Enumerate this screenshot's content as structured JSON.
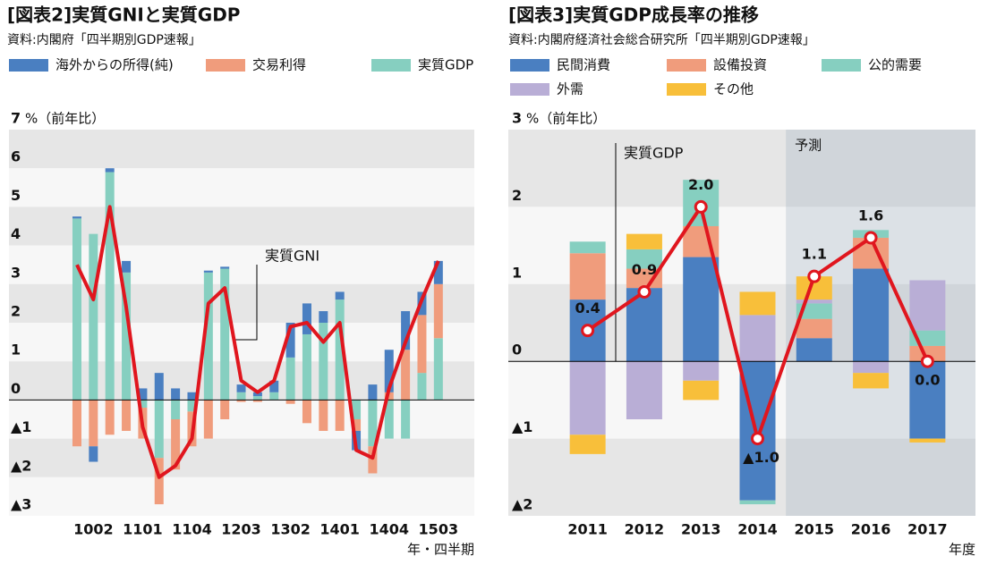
{
  "chart_data": [
    {
      "type": "bar",
      "stacked": true,
      "stack_reverse": true,
      "title": "[図表2]実質GNIと実質GDP",
      "source": "資料:内閣府「四半期別GDP速報」",
      "x_label": "年・四半期",
      "y_unit": "%（前年比）",
      "categories": [
        null,
        "1002",
        null,
        null,
        "1101",
        null,
        null,
        "1104",
        null,
        null,
        "1203",
        null,
        null,
        "1302",
        null,
        null,
        "1401",
        null,
        null,
        "1404",
        null,
        null,
        "1503"
      ],
      "series": [
        {
          "name": "海外からの所得(純)",
          "color": "#4a7fc1",
          "values": [
            0.05,
            -0.4,
            0.1,
            0.3,
            0.3,
            0.7,
            0.3,
            0.2,
            0.05,
            0.05,
            0.2,
            0.1,
            0.3,
            0.9,
            0.8,
            0.3,
            0.2,
            -0.5,
            0.4,
            1.1,
            1.0,
            0.6,
            0.6
          ]
        },
        {
          "name": "交易利得",
          "color": "#f09c7c",
          "values": [
            -1.2,
            -1.2,
            -0.9,
            -0.8,
            -0.8,
            -1.2,
            -1.3,
            -0.9,
            -1.0,
            -0.5,
            -0.05,
            -0.05,
            0,
            -0.1,
            -0.6,
            -0.8,
            -0.8,
            -0.3,
            -0.7,
            0.2,
            1.3,
            1.5,
            1.4
          ]
        },
        {
          "name": "実質GDP",
          "color": "#86cfc0",
          "values": [
            4.7,
            4.3,
            5.9,
            3.3,
            -0.2,
            -1.5,
            -0.5,
            -0.3,
            3.3,
            3.4,
            0.2,
            0.1,
            0.2,
            1.1,
            1.7,
            2.0,
            2.6,
            -0.5,
            -1.2,
            -1.0,
            -1.0,
            0.7,
            1.6
          ]
        }
      ],
      "line": {
        "name": "実質GNI",
        "color": "#e0161e",
        "values": [
          3.5,
          2.6,
          5.0,
          2.4,
          -0.7,
          -2.0,
          -1.7,
          -1.0,
          2.5,
          2.9,
          0.5,
          0.2,
          0.5,
          1.9,
          2.0,
          1.5,
          2.0,
          -1.3,
          -1.5,
          0.3,
          1.5,
          2.6,
          3.6
        ]
      },
      "ylim": [
        -3,
        7
      ],
      "yticks": [
        {
          "value": -3,
          "label": "▲3"
        },
        {
          "value": -2,
          "label": "▲2"
        },
        {
          "value": -1,
          "label": "▲1"
        },
        0,
        1,
        2,
        3,
        4,
        5,
        6,
        7
      ]
    },
    {
      "type": "bar",
      "stacked": true,
      "stack_reverse": false,
      "title": "[図表3]実質GDP成長率の推移",
      "source": "資料:内閣府経済社会総合研究所「四半期別GDP速報」",
      "x_label": "年度",
      "y_unit": "%（前年比）",
      "forecast": {
        "label": "予測",
        "from": "2015"
      },
      "categories": [
        "2011",
        "2012",
        "2013",
        "2014",
        "2015",
        "2016",
        "2017"
      ],
      "series": [
        {
          "name": "民間消費",
          "color": "#4a7fc1",
          "values": [
            0.8,
            0.95,
            1.35,
            -1.8,
            0.3,
            1.2,
            -1.0
          ]
        },
        {
          "name": "設備投資",
          "color": "#f09c7c",
          "values": [
            0.6,
            0.25,
            0.4,
            0,
            0.25,
            0.4,
            0.2
          ]
        },
        {
          "name": "公的需要",
          "color": "#86cfc0",
          "values": [
            0.15,
            0.25,
            0.6,
            -0.05,
            0.2,
            0.1,
            0.2
          ]
        },
        {
          "name": "外需",
          "color": "#b9aed6",
          "values": [
            -0.95,
            -0.75,
            -0.25,
            0.6,
            0.05,
            -0.15,
            0.65
          ]
        },
        {
          "name": "その他",
          "color": "#f8bf3a",
          "values": [
            -0.25,
            0.2,
            -0.25,
            0.3,
            0.3,
            -0.2,
            -0.05
          ]
        }
      ],
      "line": {
        "name": "実質GDP",
        "color": "#e0161e",
        "values": [
          0.4,
          0.9,
          2.0,
          -1.0,
          1.1,
          1.6,
          0.0
        ],
        "value_labels": [
          "0.4",
          "0.9",
          "2.0",
          "▲1.0",
          "1.1",
          "1.6",
          "0.0"
        ]
      },
      "ylim": [
        -2,
        3
      ],
      "yticks": [
        {
          "value": -2,
          "label": "▲2"
        },
        {
          "value": -1,
          "label": "▲1"
        },
        0,
        1,
        2,
        3
      ]
    }
  ]
}
